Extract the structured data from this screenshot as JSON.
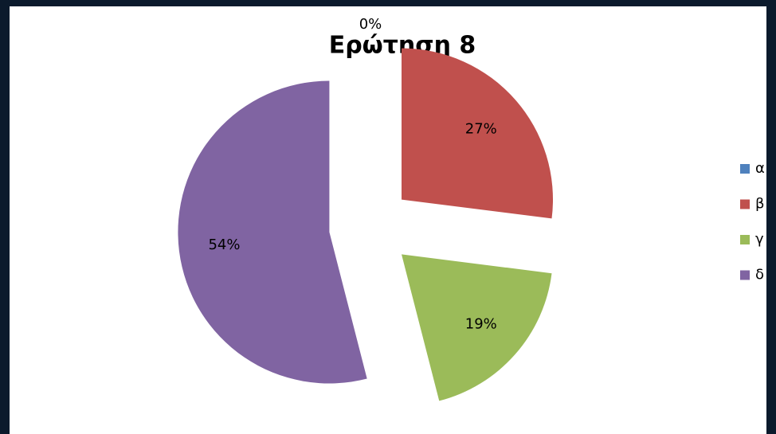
{
  "chart_data": {
    "type": "pie",
    "title": "Ερώτηση 8",
    "categories": [
      "α",
      "β",
      "γ",
      "δ"
    ],
    "values": [
      0,
      27,
      19,
      54
    ],
    "value_labels": [
      "0%",
      "27%",
      "19%",
      "54%"
    ],
    "colors": [
      "#4f81bd",
      "#c0504d",
      "#9bbb59",
      "#8064a2"
    ],
    "legend": "right"
  }
}
